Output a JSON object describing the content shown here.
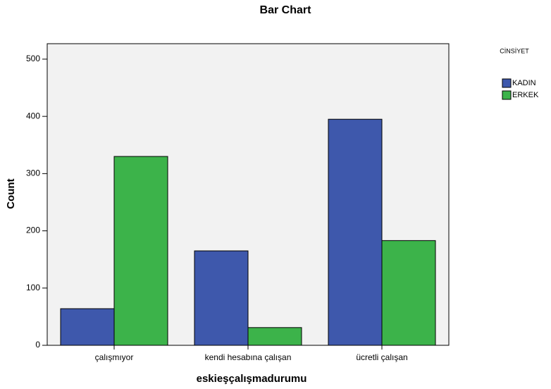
{
  "chart_data": {
    "type": "bar",
    "title": "Bar Chart",
    "x_label": "eskieşçalışmadurumu",
    "y_label": "Count",
    "categories": [
      "çalışmıyor",
      "kendi hesabına çalışan",
      "ücretli çalışan"
    ],
    "legend_title": "CİNSİYET",
    "series": [
      {
        "name": "KADIN",
        "color": "#3e58ac",
        "values": [
          64,
          165,
          395
        ]
      },
      {
        "name": "ERKEK",
        "color": "#3cb34a",
        "values": [
          330,
          31,
          183
        ]
      }
    ],
    "ylim": [
      0,
      527
    ],
    "yticks": [
      0,
      100,
      200,
      300,
      400,
      500
    ],
    "legend_position": "right"
  }
}
